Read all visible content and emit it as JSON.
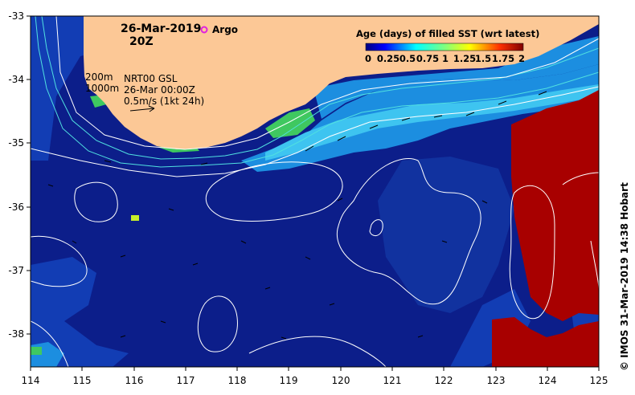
{
  "map": {
    "date_label": "26-Mar-2019",
    "time_label": "20Z",
    "argo_label": "Argo",
    "isobath_shallow": "200m",
    "isobath_deep": "1000m",
    "velocity_source": "NRT00 GSL",
    "velocity_time": "26-Mar 00:00Z",
    "velocity_scale": "0.5m/s (1kt 24h)",
    "credit": "© IMOS 31-Mar-2019 14:38 Hobart",
    "x_ticks": [
      "114",
      "115",
      "116",
      "117",
      "118",
      "119",
      "120",
      "121",
      "122",
      "123",
      "124",
      "125"
    ],
    "y_ticks": [
      "-33",
      "-34",
      "-35",
      "-36",
      "-37",
      "-38"
    ]
  },
  "legend": {
    "title": "Age (days) of filled SST (wrt latest)",
    "ticks": [
      "0",
      "0.25",
      "0.5",
      "0.75",
      "1",
      "1.25",
      "1.5",
      "1.75",
      "2"
    ]
  },
  "colors": {
    "land": "#fcc896",
    "deep_blue": "#0c1e8a",
    "mid_blue": "#123db4",
    "light_blue": "#1c8ee0",
    "cyan": "#3ec4f0",
    "red_old": "#a80000",
    "argo": "#e020e0"
  }
}
